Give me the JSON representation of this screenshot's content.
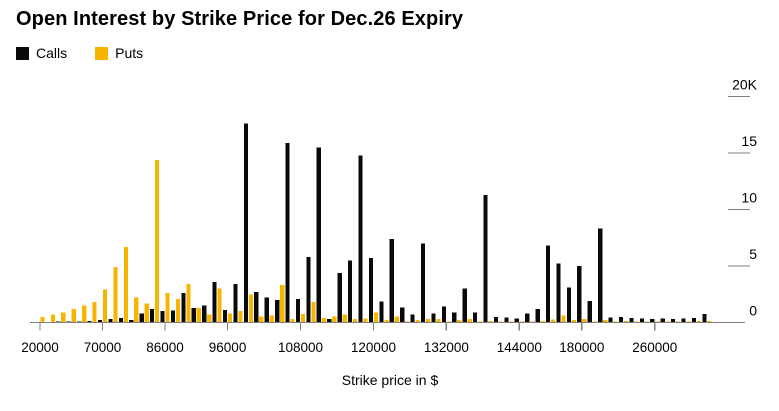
{
  "title": "Open Interest by Strike Price for Dec.26 Expiry",
  "legend": {
    "calls": {
      "label": "Calls",
      "color": "#0a0a0a"
    },
    "puts": {
      "label": "Puts",
      "color": "#f7b500"
    }
  },
  "chart_data": {
    "type": "bar",
    "title": "Open Interest by Strike Price for Dec.26 Expiry",
    "xlabel": "Strike price in $",
    "ylabel": "",
    "ylim": [
      0,
      20000
    ],
    "y_ticks": [
      0,
      5000,
      10000,
      15000,
      20000
    ],
    "y_tick_labels": [
      "0",
      "5",
      "10",
      "15",
      "20K"
    ],
    "y_axis_side": "right",
    "grid": false,
    "legend_position": "top-left",
    "x_tick_labels": [
      "20000",
      "70000",
      "86000",
      "96000",
      "108000",
      "120000",
      "132000",
      "144000",
      "180000",
      "260000"
    ],
    "x_tick_indices": [
      0,
      6,
      12,
      18,
      25,
      32,
      39,
      46,
      52,
      59
    ],
    "series": [
      {
        "name": "Calls",
        "color": "#0a0a0a",
        "values": [
          50,
          50,
          80,
          100,
          100,
          150,
          200,
          300,
          400,
          200,
          800,
          1200,
          1000,
          1050,
          2600,
          1300,
          1500,
          3600,
          1100,
          3400,
          17600,
          2700,
          2200,
          2000,
          15900,
          2100,
          5800,
          15500,
          300,
          4400,
          5500,
          14800,
          5700,
          1850,
          7400,
          1350,
          700,
          7000,
          800,
          1400,
          900,
          3000,
          900,
          11300,
          500,
          450,
          350,
          800,
          1200,
          6800,
          5200,
          3100,
          5000,
          1900,
          8300,
          450,
          500,
          400,
          350,
          300,
          350,
          300,
          350,
          400,
          750
        ]
      },
      {
        "name": "Puts",
        "color": "#f7b500",
        "values": [
          500,
          700,
          900,
          1200,
          1500,
          1800,
          2900,
          4900,
          6700,
          2200,
          1700,
          14400,
          2600,
          2100,
          3400,
          1300,
          700,
          3000,
          800,
          1000,
          2500,
          550,
          600,
          3300,
          300,
          750,
          1800,
          400,
          550,
          700,
          300,
          350,
          900,
          200,
          550,
          100,
          200,
          300,
          300,
          100,
          200,
          300,
          100,
          150,
          100,
          100,
          100,
          100,
          150,
          250,
          600,
          200,
          300,
          100,
          200,
          100,
          150,
          100,
          100,
          100,
          100,
          100,
          100,
          150,
          150
        ]
      }
    ]
  },
  "colors": {
    "axis": "#808080",
    "tick_text": "#000000",
    "background": "#ffffff"
  }
}
